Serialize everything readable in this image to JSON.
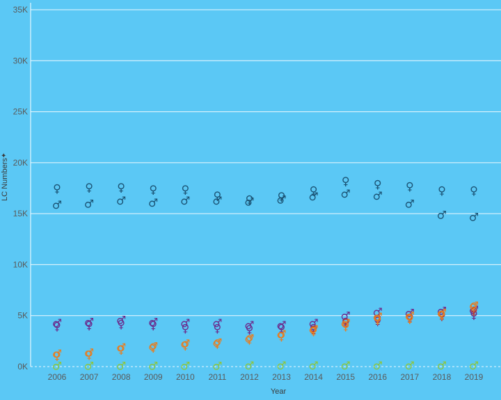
{
  "chart_data": {
    "type": "scatter",
    "title": "",
    "xlabel": "Year",
    "ylabel": "LC Numbers",
    "ylabel_icon": "pin-icon",
    "x": [
      "2006",
      "2007",
      "2008",
      "2009",
      "2010",
      "2011",
      "2012",
      "2013",
      "2014",
      "2015",
      "2016",
      "2017",
      "2018",
      "2019"
    ],
    "ylim": [
      0,
      35000
    ],
    "yticks": [
      0,
      5000,
      10000,
      15000,
      20000,
      25000,
      30000,
      35000
    ],
    "ytick_labels": [
      "0K",
      "5K",
      "10K",
      "15K",
      "20K",
      "25K",
      "30K",
      "35K"
    ],
    "grid": true,
    "series": [
      {
        "symbol": "♀",
        "color": "#1a5273",
        "values": [
          17500,
          17600,
          17600,
          17400,
          17400,
          16800,
          16400,
          16700,
          17300,
          18200,
          17900,
          17700,
          17300,
          17300
        ]
      },
      {
        "symbol": "♂",
        "color": "#1a5273",
        "values": [
          15900,
          16000,
          16300,
          16100,
          16300,
          16300,
          16200,
          16400,
          16700,
          17000,
          16800,
          16000,
          14900,
          14700
        ]
      },
      {
        "symbol": "♀",
        "color": "#6b2a8c",
        "values": [
          4000,
          4100,
          4200,
          4100,
          3800,
          3800,
          3700,
          3800,
          3800,
          4400,
          4500,
          4800,
          5000,
          5100
        ]
      },
      {
        "symbol": "♂",
        "color": "#6b2a8c",
        "values": [
          4300,
          4400,
          4600,
          4400,
          4300,
          4300,
          4100,
          4100,
          4300,
          5000,
          5400,
          5300,
          5500,
          5600
        ]
      },
      {
        "symbol": "♀",
        "color": "#c0392b",
        "values": [
          null,
          null,
          null,
          null,
          null,
          null,
          null,
          null,
          3600,
          4300,
          4700,
          4800,
          5000,
          5500
        ]
      },
      {
        "symbol": "♀",
        "color": "#e67e22",
        "values": [
          1100,
          1200,
          1700,
          1900,
          2100,
          2300,
          2700,
          3000,
          3500,
          4000,
          4600,
          4700,
          5100,
          5900
        ]
      },
      {
        "symbol": "♂",
        "color": "#e67e22",
        "values": [
          1300,
          1400,
          1900,
          2000,
          2300,
          2400,
          2800,
          3200,
          3700,
          4300,
          4900,
          5000,
          5300,
          6000
        ]
      },
      {
        "symbol": "♂",
        "color": "#8dc63f",
        "values": [
          100,
          100,
          100,
          100,
          100,
          100,
          150,
          150,
          150,
          150,
          150,
          150,
          150,
          150
        ]
      }
    ]
  }
}
